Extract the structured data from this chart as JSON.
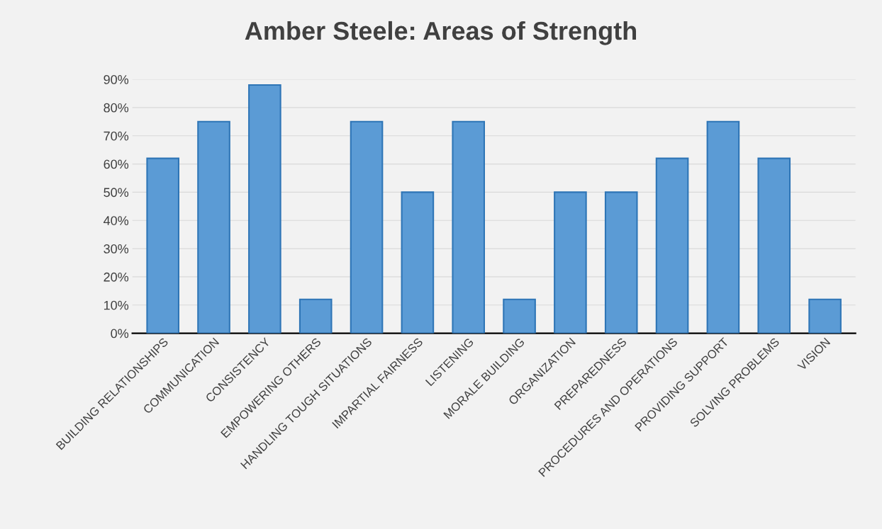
{
  "chart_data": {
    "type": "bar",
    "title": "Amber Steele: Areas of Strength",
    "categories": [
      "BUILDING RELATIONSHIPS",
      "COMMUNICATION",
      "CONSISTENCY",
      "EMPOWERING OTHERS",
      "HANDLING TOUGH SITUATIONS",
      "IMPARTIAL FAIRNESS",
      "LISTENING",
      "MORALE BUILDING",
      "ORGANIZATION",
      "PREPAREDNESS",
      "PROCEDURES AND OPERATIONS",
      "PROVIDING SUPPORT",
      "SOLVING PROBLEMS",
      "VISION"
    ],
    "values": [
      62,
      75,
      88,
      12,
      75,
      50,
      75,
      12,
      50,
      50,
      62,
      75,
      62,
      12
    ],
    "color": "#5b9bd5",
    "ylim": [
      0,
      90
    ],
    "yticks": [
      {
        "value": 0,
        "label": "0%"
      },
      {
        "value": 10,
        "label": "10%"
      },
      {
        "value": 20,
        "label": "20%"
      },
      {
        "value": 30,
        "label": "30%"
      },
      {
        "value": 40,
        "label": "40%"
      },
      {
        "value": 50,
        "label": "50%"
      },
      {
        "value": 60,
        "label": "60%"
      },
      {
        "value": 70,
        "label": "70%"
      },
      {
        "value": 80,
        "label": "80%"
      },
      {
        "value": 90,
        "label": "90%"
      }
    ],
    "grid": "y"
  }
}
